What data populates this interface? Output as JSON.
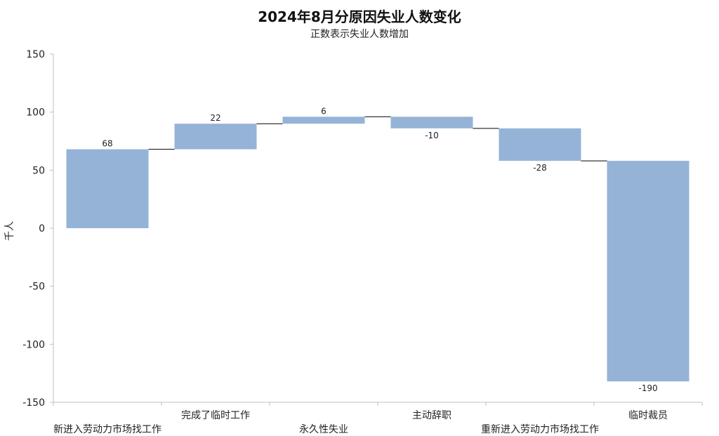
{
  "chart_data": {
    "type": "bar",
    "subtype": "waterfall",
    "title": "2024年8月分原因失业人数变化",
    "subtitle": "正数表示失业人数增加",
    "ylabel": "千人",
    "xlabel": "",
    "ylim": [
      -150,
      150
    ],
    "yticks": [
      150,
      100,
      50,
      0,
      -50,
      -100,
      -150
    ],
    "grid": false,
    "legend": "none",
    "bar_color": "#95b3d7",
    "connector_color": "#000000",
    "categories": [
      "新进入劳动力市场找工作",
      "完成了临时工作",
      "永久性失业",
      "主动辞职",
      "重新进入劳动力市场找工作",
      "临时裁员"
    ],
    "values": [
      68,
      22,
      6,
      -10,
      -28,
      -190
    ],
    "data_labels": [
      "68",
      "22",
      "6",
      "-10",
      "-28",
      "-190"
    ]
  }
}
